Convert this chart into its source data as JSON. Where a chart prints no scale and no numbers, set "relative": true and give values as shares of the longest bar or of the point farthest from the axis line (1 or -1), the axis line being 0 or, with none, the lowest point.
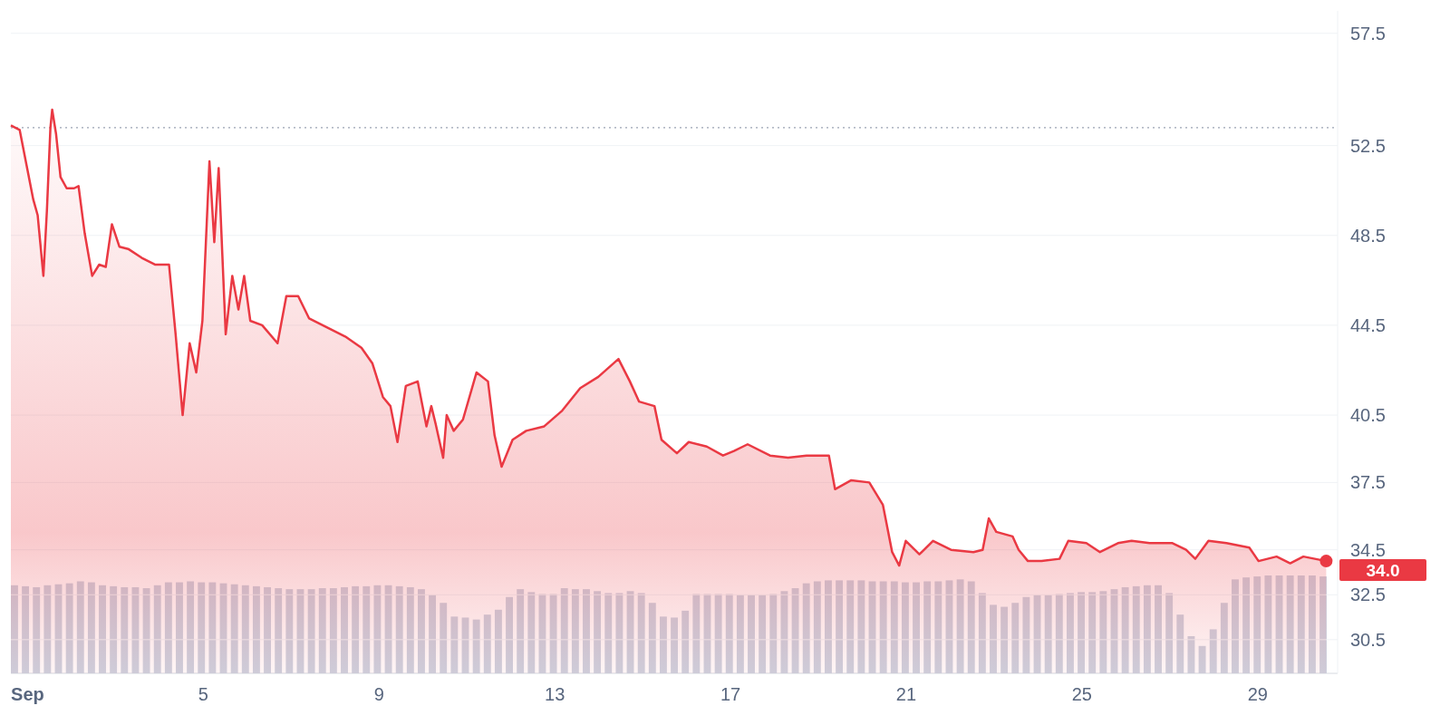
{
  "chart_data": [
    {
      "type": "area",
      "color": "#ea3943",
      "x": [
        0.62,
        0.82,
        0.99,
        1.13,
        1.23,
        1.36,
        1.44,
        1.52,
        1.56,
        1.65,
        1.75,
        1.89,
        2.06,
        2.16,
        2.3,
        2.47,
        2.63,
        2.78,
        2.92,
        3.09,
        3.29,
        3.6,
        3.91,
        4.22,
        4.37,
        4.53,
        4.69,
        4.84,
        4.98,
        5.14,
        5.25,
        5.35,
        5.51,
        5.66,
        5.8,
        5.93,
        6.07,
        6.34,
        6.69,
        6.89,
        7.16,
        7.41,
        7.82,
        8.23,
        8.6,
        8.85,
        9.09,
        9.26,
        9.42,
        9.61,
        9.88,
        10.08,
        10.19,
        10.29,
        10.46,
        10.54,
        10.7,
        10.91,
        11.22,
        11.48,
        11.63,
        11.79,
        12.04,
        12.35,
        12.76,
        13.17,
        13.58,
        13.99,
        14.45,
        14.71,
        14.92,
        15.27,
        15.43,
        15.78,
        16.05,
        16.46,
        16.83,
        17.08,
        17.39,
        17.9,
        18.31,
        18.73,
        19.24,
        19.38,
        19.75,
        20.16,
        20.47,
        20.68,
        20.84,
        20.99,
        21.3,
        21.61,
        22.02,
        22.53,
        22.74,
        22.88,
        23.05,
        23.42,
        23.56,
        23.77,
        24.08,
        24.49,
        24.69,
        25.1,
        25.41,
        25.82,
        26.13,
        26.54,
        27.06,
        27.37,
        27.58,
        27.88,
        28.29,
        28.81,
        29.02,
        29.43,
        29.74,
        30.04,
        30.56
      ],
      "values": [
        53.4,
        53.2,
        51.5,
        50.1,
        49.4,
        46.7,
        49.6,
        53.3,
        54.1,
        53.0,
        51.1,
        50.6,
        50.6,
        50.7,
        48.6,
        46.7,
        47.2,
        47.1,
        49.0,
        48.0,
        47.9,
        47.5,
        47.2,
        47.2,
        44.1,
        40.5,
        43.7,
        42.4,
        44.7,
        51.8,
        48.2,
        51.5,
        44.1,
        46.7,
        45.2,
        46.7,
        44.7,
        44.5,
        43.7,
        45.8,
        45.8,
        44.8,
        44.4,
        44.0,
        43.5,
        42.8,
        41.3,
        40.9,
        39.3,
        41.8,
        42.0,
        40.0,
        40.9,
        40.1,
        38.6,
        40.5,
        39.8,
        40.3,
        42.4,
        42.0,
        39.6,
        38.2,
        39.4,
        39.8,
        40.0,
        40.7,
        41.7,
        42.2,
        43.0,
        42.0,
        41.1,
        40.9,
        39.4,
        38.8,
        39.3,
        39.1,
        38.7,
        38.9,
        39.2,
        38.7,
        38.6,
        38.7,
        38.7,
        37.2,
        37.6,
        37.5,
        36.5,
        34.4,
        33.8,
        34.9,
        34.3,
        34.9,
        34.5,
        34.4,
        34.5,
        35.9,
        35.3,
        35.1,
        34.5,
        34.0,
        34.0,
        34.1,
        34.9,
        34.8,
        34.4,
        34.8,
        34.9,
        34.8,
        34.8,
        34.5,
        34.1,
        34.9,
        34.8,
        34.6,
        34.0,
        34.2,
        33.9,
        34.2,
        34.0
      ],
      "xlim": [
        0.62,
        30.82
      ],
      "xticks": [
        {
          "value": 1,
          "label": "Sep"
        },
        5,
        9,
        13,
        17,
        21,
        25,
        29
      ],
      "ylim": [
        29.0,
        58.5
      ],
      "yticks": [
        30.5,
        32.5,
        34.5,
        37.5,
        40.5,
        44.5,
        48.5,
        52.5,
        57.5
      ],
      "grid": "y",
      "ref_lines": [
        {
          "axis": "y",
          "value": 53.3,
          "color": "#9aa3b2",
          "line_style": "dotted"
        }
      ],
      "annotations": [
        {
          "text": "34.0",
          "x": 30.56,
          "y": 34.0
        }
      ]
    },
    {
      "type": "bar",
      "relative": true,
      "color": "#cdd3e0",
      "categories": [
        null,
        null,
        null,
        null,
        null,
        null,
        null,
        null,
        null,
        null,
        null,
        null,
        null,
        null,
        null,
        null,
        null,
        null,
        null,
        null,
        null,
        null,
        null,
        null,
        null,
        null,
        null,
        null,
        null,
        null,
        null,
        null,
        null,
        null,
        null,
        null,
        null,
        null,
        null,
        null,
        null,
        null,
        null,
        null,
        null,
        null,
        null,
        null,
        null,
        null,
        null,
        null,
        null,
        null,
        null,
        null,
        null,
        null,
        null,
        null,
        null,
        null,
        null,
        null,
        null,
        null,
        null,
        null,
        null,
        null,
        null,
        null,
        null,
        null,
        null,
        null,
        null,
        null,
        null,
        null,
        null,
        null,
        null,
        null,
        null,
        null,
        null,
        null,
        null,
        null,
        null,
        null,
        null,
        null,
        null,
        null,
        null,
        null,
        null,
        null,
        null,
        null,
        null,
        null,
        null,
        null,
        null,
        null,
        null,
        null,
        null,
        null,
        null,
        null,
        null,
        null,
        null,
        null,
        null,
        null
      ],
      "values": [
        0.9,
        0.89,
        0.88,
        0.9,
        0.91,
        0.92,
        0.94,
        0.93,
        0.9,
        0.89,
        0.88,
        0.88,
        0.87,
        0.9,
        0.93,
        0.93,
        0.94,
        0.93,
        0.93,
        0.92,
        0.91,
        0.9,
        0.89,
        0.88,
        0.87,
        0.86,
        0.86,
        0.86,
        0.87,
        0.87,
        0.88,
        0.89,
        0.89,
        0.9,
        0.9,
        0.89,
        0.88,
        0.86,
        0.8,
        0.72,
        0.58,
        0.57,
        0.55,
        0.6,
        0.65,
        0.78,
        0.86,
        0.83,
        0.81,
        0.81,
        0.87,
        0.86,
        0.86,
        0.84,
        0.82,
        0.82,
        0.84,
        0.82,
        0.72,
        0.58,
        0.57,
        0.64,
        0.81,
        0.81,
        0.81,
        0.81,
        0.8,
        0.8,
        0.8,
        0.81,
        0.84,
        0.87,
        0.92,
        0.94,
        0.95,
        0.95,
        0.95,
        0.95,
        0.94,
        0.94,
        0.94,
        0.93,
        0.93,
        0.94,
        0.94,
        0.95,
        0.96,
        0.94,
        0.82,
        0.7,
        0.68,
        0.72,
        0.78,
        0.8,
        0.8,
        0.81,
        0.82,
        0.83,
        0.83,
        0.84,
        0.86,
        0.88,
        0.89,
        0.9,
        0.9,
        0.82,
        0.6,
        0.38,
        0.28,
        0.45,
        0.72,
        0.96,
        0.98,
        0.99,
        1.0,
        1.0,
        1.0,
        1.0,
        1.0,
        0.99
      ]
    }
  ]
}
